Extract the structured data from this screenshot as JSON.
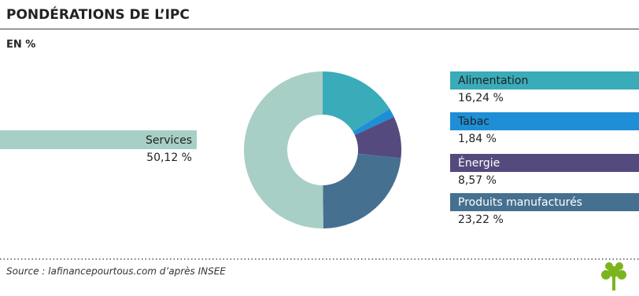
{
  "chart_data": {
    "type": "donut",
    "title": "PONDÉRATIONS DE L’IPC",
    "subtitle": "EN %",
    "categories": [
      "Alimentation",
      "Tabac",
      "Énergie",
      "Produits manufacturés",
      "Services"
    ],
    "values": [
      16.24,
      1.84,
      8.57,
      23.22,
      50.12
    ],
    "value_labels": [
      "16,24 %",
      "1,84 %",
      "8,57 %",
      "23,22 %",
      "50,12 %"
    ],
    "colors": [
      "#3aabb8",
      "#1e8fd6",
      "#554a7e",
      "#46708f",
      "#a8cfc6"
    ],
    "source": "Source : lafinancepourtous.com d’après INSEE"
  }
}
